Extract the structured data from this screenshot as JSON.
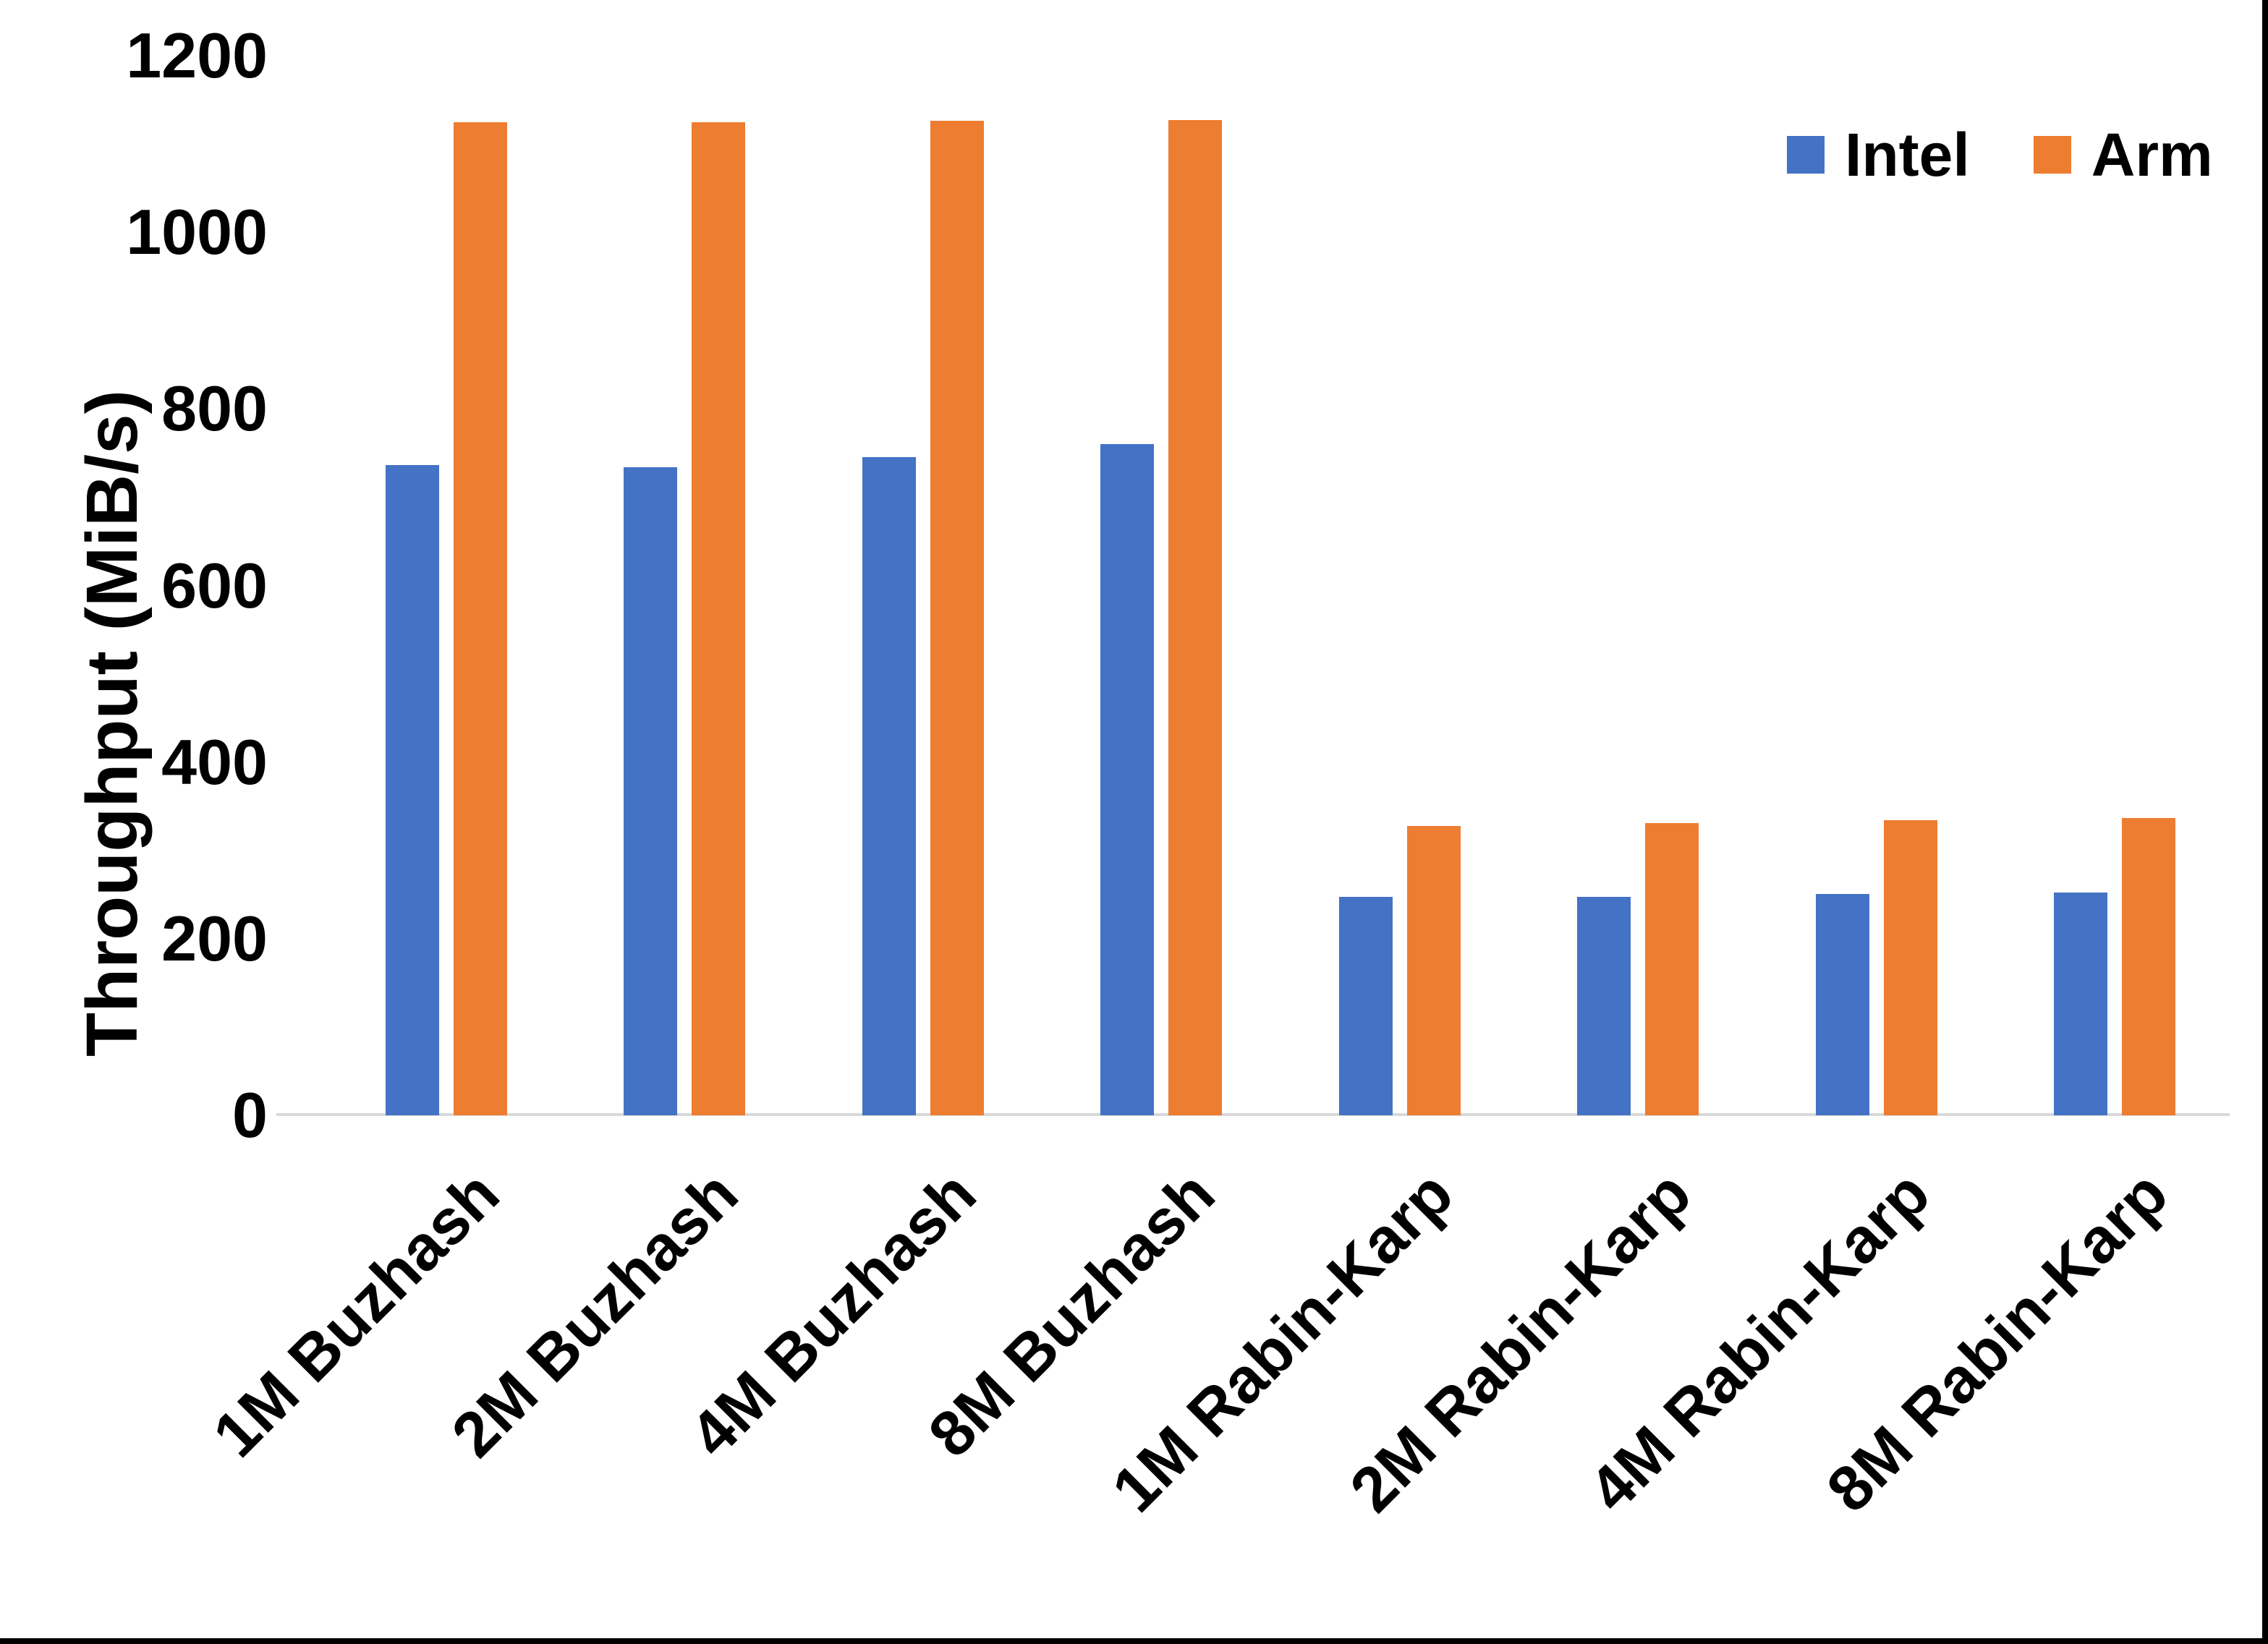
{
  "chart_data": {
    "type": "bar",
    "title": "",
    "xlabel": "",
    "ylabel": "Throughput (MiB/s)",
    "ylim": [
      0,
      1200
    ],
    "yticks": [
      0,
      200,
      400,
      600,
      800,
      1000,
      1200
    ],
    "grid": false,
    "legend_position": "top-right",
    "categories": [
      "1M Buzhash",
      "2M Buzhash",
      "4M Buzhash",
      "8M Buzhash",
      "1M Rabin-Karp",
      "2M Rabin-Karp",
      "4M Rabin-Karp",
      "8M Rabin-Karp"
    ],
    "series": [
      {
        "name": "Intel",
        "color": "#4472C4",
        "values": [
          736,
          734,
          745,
          760,
          247,
          247,
          251,
          252
        ]
      },
      {
        "name": "Arm",
        "color": "#ED7D31",
        "values": [
          1125,
          1125,
          1126,
          1127,
          328,
          331,
          334,
          337
        ]
      }
    ]
  },
  "colors": {
    "axis_line": "#D9D9D9",
    "text": "#000000",
    "page_border": "#000000",
    "background": "#FFFFFF"
  }
}
